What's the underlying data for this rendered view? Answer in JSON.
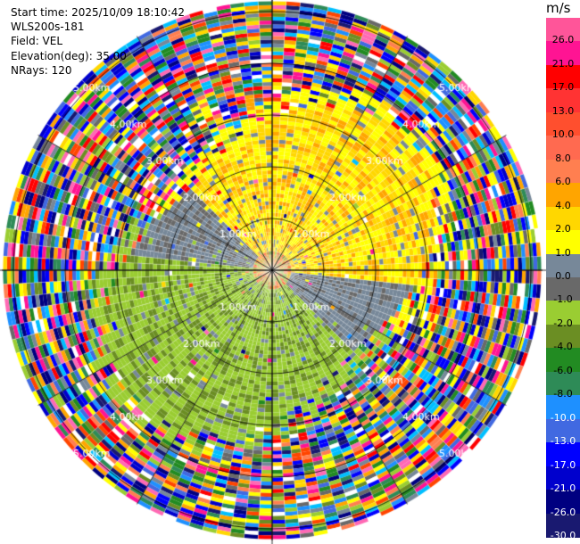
{
  "header": {
    "start_time": "Start time: 2025/10/09 18:10:42",
    "station": "WLS200s-181",
    "field": "Field: VEL",
    "elevation": "Elevation(deg): 35.00",
    "nrays": "NRays: 120"
  },
  "ppi": {
    "range_rings_km": [
      1,
      2,
      3,
      4,
      5
    ],
    "range_labels": [
      "1.00km",
      "2.00km",
      "3.00km",
      "4.00km",
      "5.00km"
    ],
    "background": "#ffffff",
    "gridline_color": "#000000"
  },
  "colorbar": {
    "unit": "m/s",
    "ticks": [
      "26.0",
      "21.0",
      "17.0",
      "13.0",
      "10.0",
      "8.0",
      "6.0",
      "4.0",
      "2.0",
      "1.0",
      "0.0",
      "-1.0",
      "-2.0",
      "-4.0",
      "-6.0",
      "-8.0",
      "-10.0",
      "-13.0",
      "-17.0",
      "-21.0",
      "-26.0",
      "-30.0"
    ],
    "colors": [
      "#ff5599",
      "#ff1493",
      "#ff0000",
      "#ff3333",
      "#ff4f2e",
      "#ff6a50",
      "#ff7f50",
      "#ffa500",
      "#ffd700",
      "#ffff00",
      "#778899",
      "#696969",
      "#9acd32",
      "#6b8e23",
      "#228b22",
      "#2e8b57",
      "#1e90ff",
      "#4169e1",
      "#0000ff",
      "#0000cd",
      "#000080",
      "#191970"
    ]
  }
}
